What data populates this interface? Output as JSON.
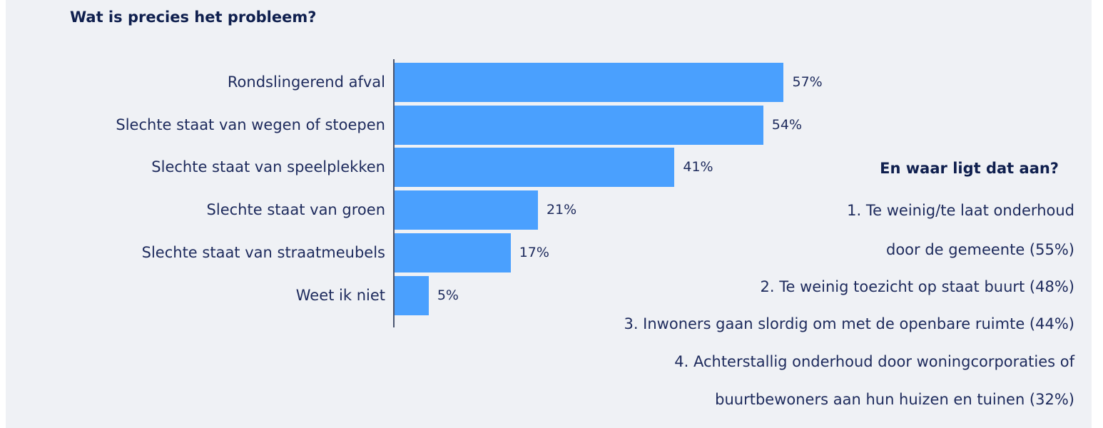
{
  "chart_data": {
    "type": "bar",
    "orientation": "horizontal",
    "title": "Wat is precies het probleem?",
    "categories": [
      "Rondslingerend afval",
      "Slechte staat van wegen of stoepen",
      "Slechte staat van speelplekken",
      "Slechte staat van groen",
      "Slechte staat van straatmeubels",
      "Weet ik niet"
    ],
    "values": [
      57,
      54,
      41,
      21,
      17,
      5
    ],
    "value_labels": [
      "57%",
      "54%",
      "41%",
      "21%",
      "17%",
      "5%"
    ],
    "unit": "%",
    "xlim": [
      0,
      57
    ],
    "grid": false,
    "bar_color": "#4aa0fe"
  },
  "side": {
    "title": "En waar ligt dat aan?",
    "lines": [
      "1. Te weinig/te laat onderhoud",
      "door de gemeente (55%)",
      "2. Te weinig toezicht op staat buurt (48%)",
      "3. Inwoners gaan slordig om met de openbare ruimte  (44%)",
      "4. Achterstallig onderhoud door woningcorporaties of",
      "buurtbewoners aan hun huizen en tuinen (32%)"
    ]
  }
}
